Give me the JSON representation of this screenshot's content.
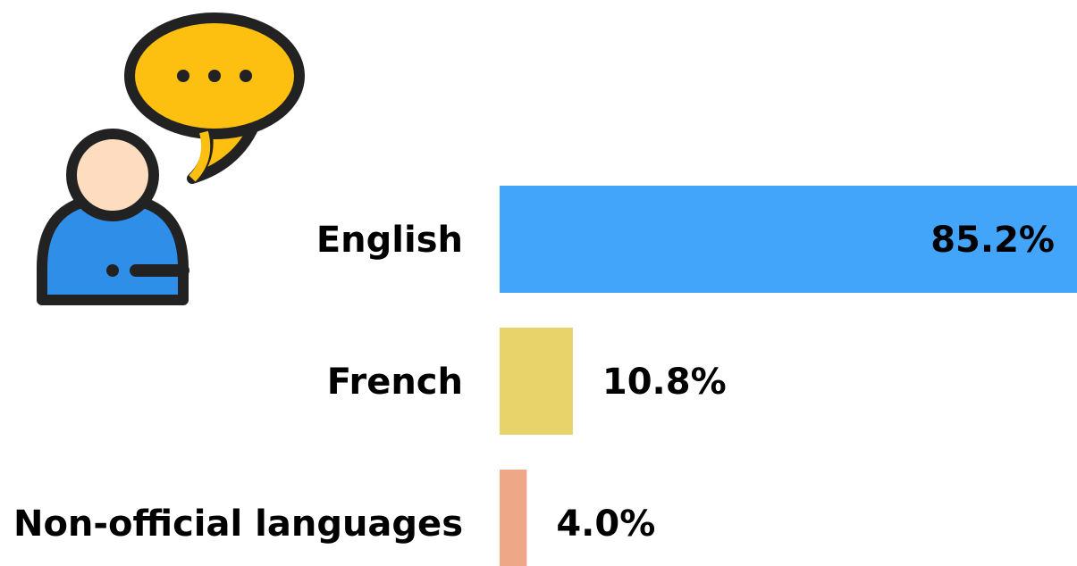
{
  "chart_data": {
    "type": "bar",
    "orientation": "horizontal",
    "categories": [
      "English",
      "French",
      "Non-official languages"
    ],
    "values": [
      85.2,
      10.8,
      4.0
    ],
    "value_labels": [
      "85.2%",
      "10.8%",
      "4.0%"
    ],
    "colors": [
      "#42a5fa",
      "#e8d26a",
      "#eea887"
    ]
  }
}
